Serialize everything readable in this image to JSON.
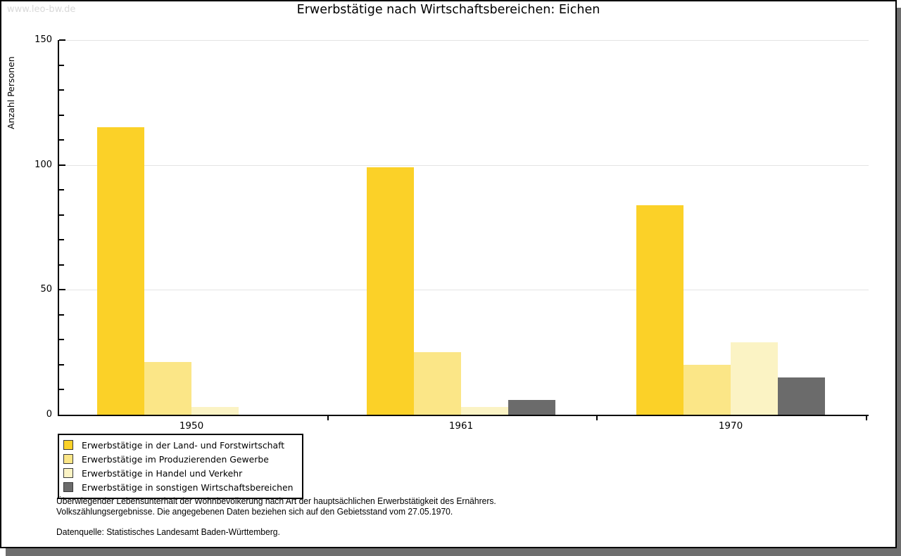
{
  "watermark": "www.leo-bw.de",
  "title": "Erwerbstätige nach Wirtschaftsbereichen: Eichen",
  "chart_data": {
    "type": "bar",
    "title": "Erwerbstätige nach Wirtschaftsbereichen: Eichen",
    "xlabel": "",
    "ylabel": "Anzahl Personen",
    "ylim": [
      0,
      150
    ],
    "yticks": [
      0,
      50,
      100,
      150
    ],
    "ytick_minor_step": 10,
    "ygrid": [
      50,
      100,
      150
    ],
    "grid": "horizontal-major-only",
    "legend_position": "bottom-left",
    "categories": [
      "1950",
      "1961",
      "1970"
    ],
    "series": [
      {
        "name": "Erwerbstätige in der Land- und Forstwirtschaft",
        "color": "#fbd128",
        "values": [
          115,
          99,
          84
        ]
      },
      {
        "name": "Erwerbstätige im Produzierenden Gewerbe",
        "color": "#fbe687",
        "values": [
          21,
          25,
          20
        ]
      },
      {
        "name": "Erwerbstätige in Handel und Verkehr",
        "color": "#fbf3c4",
        "values": [
          3,
          3,
          29
        ]
      },
      {
        "name": "Erwerbstätige in sonstigen Wirtschaftsbereichen",
        "color": "#6b6b6b",
        "values": [
          0,
          6,
          15
        ]
      }
    ]
  },
  "footnotes": {
    "line1": "Überwiegender Lebensunterhalt der Wohnbevölkerung nach Art der hauptsächlichen Erwerbstätigkeit des Ernährers.",
    "line2": "Volkszählungsergebnisse. Die angegebenen Daten beziehen sich auf den Gebietsstand vom 27.05.1970.",
    "source": "Datenquelle: Statistisches Landesamt Baden-Württemberg."
  },
  "colors": {
    "frame_shadow": "#6e6e6e",
    "frame_border": "#000000",
    "watermark": "#d9d9d9",
    "gridline": "#e4e4e4",
    "axis": "#000000",
    "background": "#ffffff"
  }
}
